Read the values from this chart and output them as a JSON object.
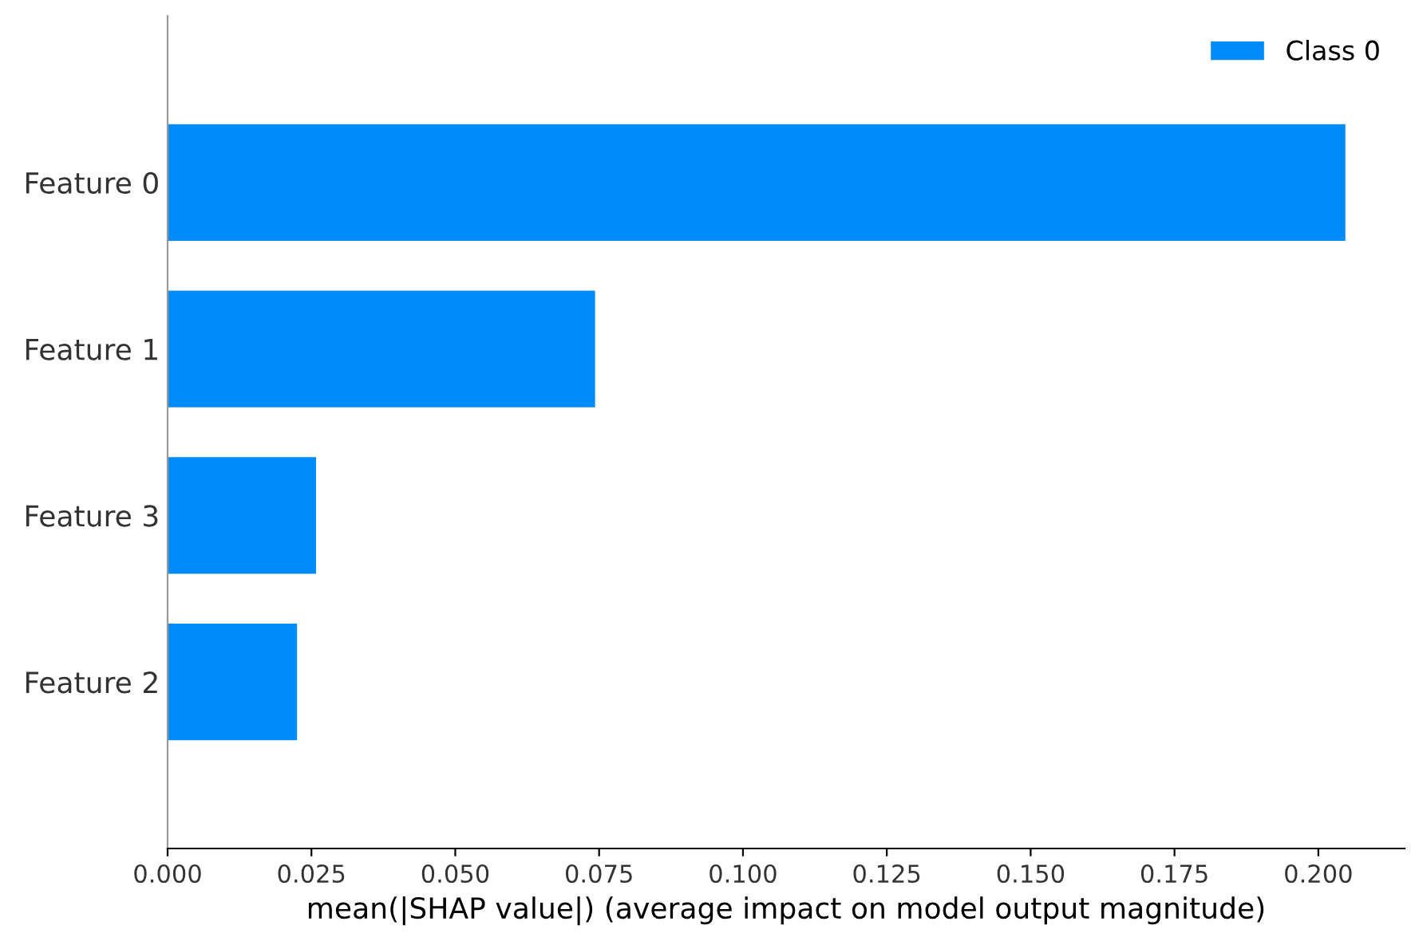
{
  "chart_data": {
    "type": "bar",
    "orientation": "horizontal",
    "categories": [
      "Feature 0",
      "Feature 1",
      "Feature 3",
      "Feature 2"
    ],
    "series": [
      {
        "name": "Class 0",
        "color": "#008bfb",
        "values": [
          0.2047,
          0.0743,
          0.0258,
          0.0225
        ]
      }
    ],
    "xlabel": "mean(|SHAP value|) (average impact on model output magnitude)",
    "xlim": [
      0,
      0.215
    ],
    "xticks": [
      {
        "value": 0,
        "label": "0.000"
      },
      {
        "value": 0.025,
        "label": "0.025"
      },
      {
        "value": 0.05,
        "label": "0.050"
      },
      {
        "value": 0.075,
        "label": "0.075"
      },
      {
        "value": 0.1,
        "label": "0.100"
      },
      {
        "value": 0.125,
        "label": "0.125"
      },
      {
        "value": 0.15,
        "label": "0.150"
      },
      {
        "value": 0.175,
        "label": "0.175"
      },
      {
        "value": 0.2,
        "label": "0.200"
      }
    ],
    "legend": "top right",
    "grid": false
  }
}
